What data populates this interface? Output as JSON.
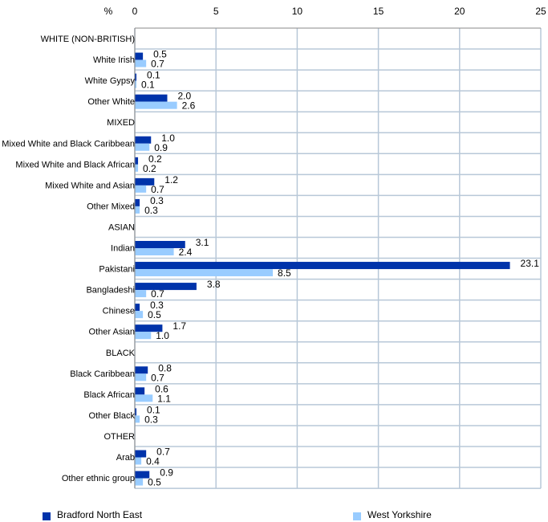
{
  "chart_data": {
    "type": "bar",
    "orientation": "horizontal",
    "axis_unit_label": "%",
    "xlim": [
      0,
      25
    ],
    "ticks": [
      0,
      5,
      10,
      15,
      20,
      25
    ],
    "grid": true,
    "legend_placement": "bottom",
    "rows": [
      {
        "label": "WHITE (NON-BRITISH)",
        "header": true
      },
      {
        "label": "White Irish",
        "values": [
          0.5,
          0.7
        ]
      },
      {
        "label": "White Gypsy",
        "values": [
          0.1,
          0.1
        ]
      },
      {
        "label": "Other White",
        "values": [
          2.0,
          2.6
        ]
      },
      {
        "label": "MIXED",
        "header": true
      },
      {
        "label": "Mixed White and Black Caribbean",
        "values": [
          1.0,
          0.9
        ]
      },
      {
        "label": "Mixed White and Black African",
        "values": [
          0.2,
          0.2
        ]
      },
      {
        "label": "Mixed White and Asian",
        "values": [
          1.2,
          0.7
        ]
      },
      {
        "label": "Other Mixed",
        "values": [
          0.3,
          0.3
        ]
      },
      {
        "label": "ASIAN",
        "header": true
      },
      {
        "label": "Indian",
        "values": [
          3.1,
          2.4
        ]
      },
      {
        "label": "Pakistani",
        "values": [
          23.1,
          8.5
        ]
      },
      {
        "label": "Bangladeshi",
        "values": [
          3.8,
          0.7
        ]
      },
      {
        "label": "Chinese",
        "values": [
          0.3,
          0.5
        ]
      },
      {
        "label": "Other Asian",
        "values": [
          1.7,
          1.0
        ]
      },
      {
        "label": "BLACK",
        "header": true
      },
      {
        "label": "Black Caribbean",
        "values": [
          0.8,
          0.7
        ]
      },
      {
        "label": "Black African",
        "values": [
          0.6,
          1.1
        ]
      },
      {
        "label": "Other Black",
        "values": [
          0.1,
          0.3
        ]
      },
      {
        "label": "OTHER",
        "header": true
      },
      {
        "label": "Arab",
        "values": [
          0.7,
          0.4
        ]
      },
      {
        "label": "Other ethnic group",
        "values": [
          0.9,
          0.5
        ]
      }
    ],
    "series": [
      {
        "name": "Bradford North East",
        "color": "#0033aa"
      },
      {
        "name": "West Yorkshire",
        "color": "#99ccff"
      }
    ]
  }
}
